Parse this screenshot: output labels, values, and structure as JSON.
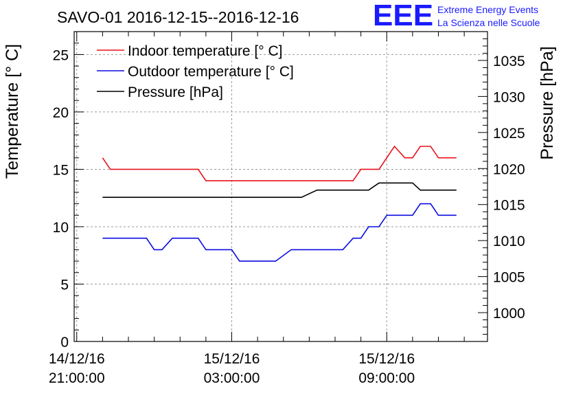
{
  "chart_data": {
    "type": "line",
    "title": "SAVO-01 2016-12-15--2016-12-16",
    "ylabel_left": "Temperature [° C]",
    "ylabel_right": "Pressure [hPa]",
    "x_unit": "hours since 14/12/16 21:00:00",
    "xlim": [
      -0.1,
      15.9
    ],
    "ylim_left": [
      0,
      27
    ],
    "ylim_right": [
      996,
      1039
    ],
    "grid": true,
    "legend_position": "top-left",
    "x_ticks": [
      {
        "x": 0,
        "line1": "14/12/16",
        "line2": "21:00:00"
      },
      {
        "x": 6,
        "line1": "15/12/16",
        "line2": "03:00:00"
      },
      {
        "x": 12,
        "line1": "15/12/16",
        "line2": "09:00:00"
      }
    ],
    "y_ticks_left": [
      0,
      5,
      10,
      15,
      20,
      25
    ],
    "y_ticks_right": [
      1000,
      1005,
      1010,
      1015,
      1020,
      1025,
      1030,
      1035
    ],
    "series": [
      {
        "name": "Indoor temperature [° C]",
        "color": "#e8101a",
        "axis": "left",
        "points": [
          [
            1.0,
            16
          ],
          [
            1.3,
            15
          ],
          [
            4.7,
            15
          ],
          [
            5.0,
            14
          ],
          [
            10.7,
            14
          ],
          [
            11.0,
            15
          ],
          [
            11.7,
            15
          ],
          [
            12.3,
            17
          ],
          [
            12.7,
            16
          ],
          [
            13.0,
            16
          ],
          [
            13.3,
            17
          ],
          [
            13.7,
            17
          ],
          [
            14.0,
            16
          ],
          [
            14.7,
            16
          ]
        ]
      },
      {
        "name": "Outdoor temperature [° C]",
        "color": "#0a0ae0",
        "axis": "left",
        "points": [
          [
            1.0,
            9
          ],
          [
            2.7,
            9
          ],
          [
            3.0,
            8
          ],
          [
            3.3,
            8
          ],
          [
            3.7,
            9
          ],
          [
            4.7,
            9
          ],
          [
            5.0,
            8
          ],
          [
            6.0,
            8
          ],
          [
            6.3,
            7
          ],
          [
            7.7,
            7
          ],
          [
            8.3,
            8
          ],
          [
            10.3,
            8
          ],
          [
            10.7,
            9
          ],
          [
            11.0,
            9
          ],
          [
            11.3,
            10
          ],
          [
            11.7,
            10
          ],
          [
            12.0,
            11
          ],
          [
            13.0,
            11
          ],
          [
            13.3,
            12
          ],
          [
            13.7,
            12
          ],
          [
            14.0,
            11
          ],
          [
            14.7,
            11
          ]
        ]
      },
      {
        "name": "Pressure [hPa]",
        "color": "#000000",
        "axis": "right",
        "points": [
          [
            1.0,
            1016
          ],
          [
            8.7,
            1016
          ],
          [
            9.3,
            1017
          ],
          [
            11.3,
            1017
          ],
          [
            11.7,
            1018
          ],
          [
            13.0,
            1018
          ],
          [
            13.3,
            1017
          ],
          [
            14.7,
            1017
          ]
        ]
      }
    ]
  },
  "logo": {
    "letters": "EEE",
    "line1": "Extreme Energy Events",
    "line2": "La Scienza nelle Scuole",
    "color": "#1a1aff"
  }
}
